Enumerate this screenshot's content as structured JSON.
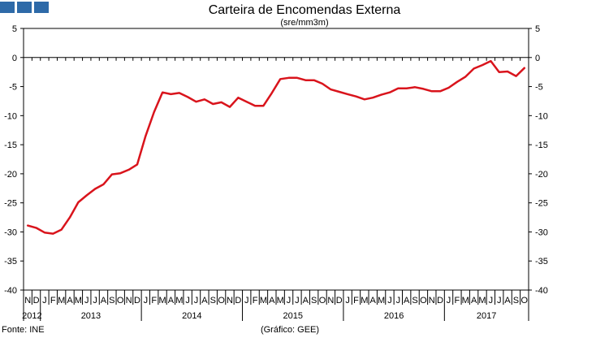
{
  "header": {
    "title": "Carteira de Encomendas Externa",
    "subtitle": "(sre/mm3m)",
    "logo_color": "#2e6aa8"
  },
  "footer": {
    "source": "Fonte: INE",
    "credit": "(Gráfico: GEE)"
  },
  "chart_data": {
    "type": "line",
    "title": "Carteira de Encomendas Externa",
    "subtitle": "(sre/mm3m)",
    "ylim": [
      -40,
      5
    ],
    "yticks": [
      5,
      0,
      -5,
      -10,
      -15,
      -20,
      -25,
      -30,
      -35,
      -40
    ],
    "grid": false,
    "line_color": "#d9141c",
    "month_labels": [
      "N",
      "D",
      "J",
      "F",
      "M",
      "A",
      "M",
      "J",
      "J",
      "A",
      "S",
      "O",
      "N",
      "D",
      "J",
      "F",
      "M",
      "A",
      "M",
      "J",
      "J",
      "A",
      "S",
      "O",
      "N",
      "D",
      "J",
      "F",
      "M",
      "A",
      "M",
      "J",
      "J",
      "A",
      "S",
      "O",
      "N",
      "D",
      "J",
      "F",
      "M",
      "A",
      "M",
      "J",
      "J",
      "A",
      "S",
      "O",
      "N",
      "D",
      "J",
      "F",
      "M",
      "A",
      "M",
      "J",
      "J",
      "A",
      "S",
      "O"
    ],
    "years": [
      {
        "label": "2012",
        "start": 0,
        "count": 2
      },
      {
        "label": "2013",
        "start": 2,
        "count": 12
      },
      {
        "label": "2014",
        "start": 14,
        "count": 12
      },
      {
        "label": "2015",
        "start": 26,
        "count": 12
      },
      {
        "label": "2016",
        "start": 38,
        "count": 12
      },
      {
        "label": "2017",
        "start": 50,
        "count": 10
      }
    ],
    "series": [
      {
        "values": [
          -28.9,
          -29.3,
          -30.1,
          -30.3,
          -29.6,
          -27.5,
          -24.9,
          -23.7,
          -22.6,
          -21.8,
          -20.1,
          -19.9,
          -19.3,
          -18.4,
          -13.5,
          -9.4,
          -6.0,
          -6.3,
          -6.1,
          -6.8,
          -7.6,
          -7.2,
          -8.0,
          -7.7,
          -8.5,
          -6.9,
          -7.6,
          -8.3,
          -8.3,
          -6.1,
          -3.7,
          -3.5,
          -3.5,
          -3.9,
          -3.9,
          -4.5,
          -5.5,
          -5.9,
          -6.3,
          -6.7,
          -7.2,
          -6.9,
          -6.4,
          -6.0,
          -5.3,
          -5.3,
          -5.1,
          -5.4,
          -5.8,
          -5.8,
          -5.2,
          -4.2,
          -3.3,
          -1.9,
          -1.3,
          -0.6,
          -2.5,
          -2.4,
          -3.2,
          -1.8
        ]
      }
    ]
  }
}
